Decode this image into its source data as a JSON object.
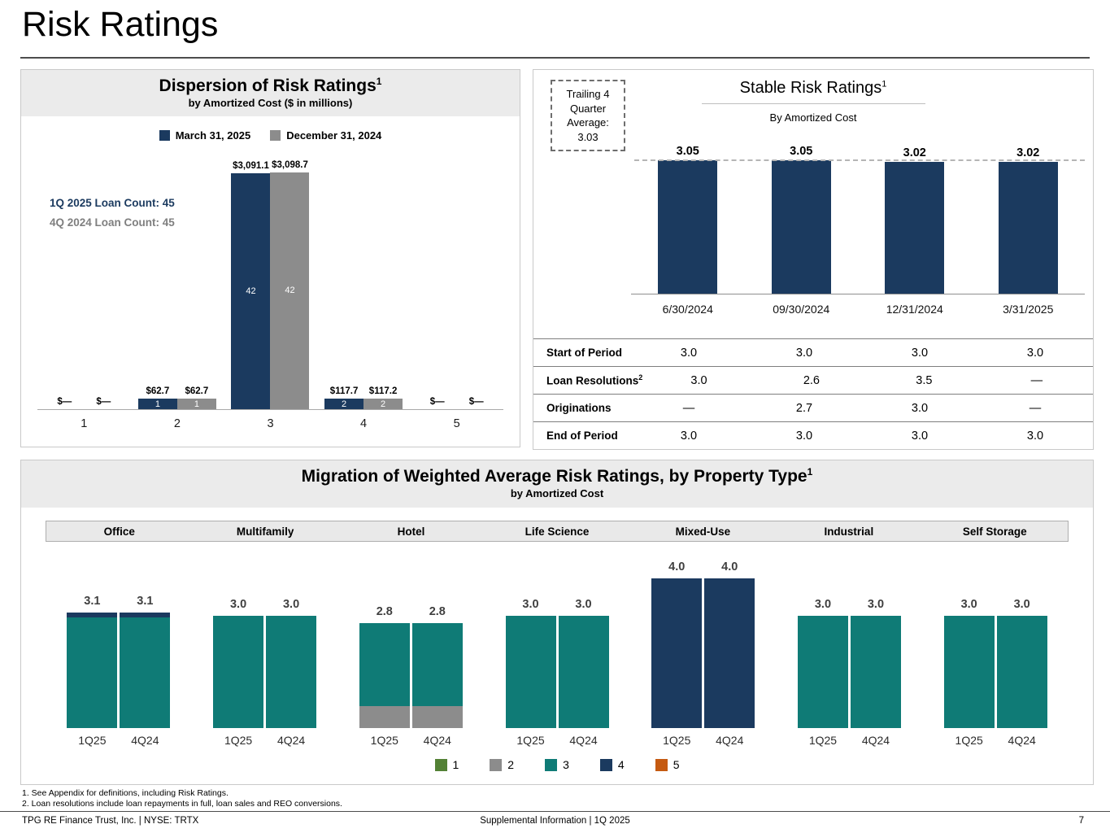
{
  "page": {
    "title": "Risk Ratings",
    "footnotes": [
      "1. See Appendix for definitions, including Risk Ratings.",
      "2. Loan resolutions include loan repayments in full, loan sales and REO conversions."
    ],
    "footer": {
      "left": "TPG RE Finance Trust, Inc. | NYSE: TRTX",
      "center": "Supplemental Information | 1Q 2025",
      "page_number": "7"
    }
  },
  "colors": {
    "navy": "#1b3a5f",
    "gray": "#8c8c8c",
    "teal": "#0f7b76",
    "green": "#538135",
    "orange": "#c55a11",
    "rating_colors": {
      "1": "#538135",
      "2": "#8c8c8c",
      "3": "#0f7b76",
      "4": "#1b3a5f",
      "5": "#c55a11"
    }
  },
  "chart_data": [
    {
      "id": "dispersion",
      "type": "bar",
      "title": "Dispersion of Risk Ratings",
      "footnote_ref": "1",
      "subtitle": "by Amortized Cost ($ in millions)",
      "xlabel": "",
      "ylabel": "",
      "ylim": [
        0,
        3300
      ],
      "legend_position": "top",
      "categories": [
        "1",
        "2",
        "3",
        "4",
        "5"
      ],
      "series": [
        {
          "name": "March 31, 2025",
          "color_key": "navy",
          "values": [
            0,
            62.7,
            3091.1,
            117.7,
            0
          ],
          "value_labels": [
            "$—",
            "$62.7",
            "$3,091.1",
            "$117.7",
            "$—"
          ],
          "loan_counts": [
            null,
            1,
            42,
            2,
            null
          ]
        },
        {
          "name": "December 31, 2024",
          "color_key": "gray",
          "values": [
            0,
            62.7,
            3098.7,
            117.2,
            0
          ],
          "value_labels": [
            "$—",
            "$62.7",
            "$3,098.7",
            "$117.2",
            "$—"
          ],
          "loan_counts": [
            null,
            1,
            42,
            2,
            null
          ]
        }
      ],
      "annotations": [
        "1Q 2025 Loan Count: 45",
        "4Q 2024 Loan Count: 45"
      ]
    },
    {
      "id": "stable",
      "type": "bar",
      "title": "Stable Risk Ratings",
      "footnote_ref": "1",
      "subtitle": "By Amortized Cost",
      "xlabel": "",
      "ylabel": "",
      "ylim": [
        0,
        3.35
      ],
      "color_key": "navy",
      "categories": [
        "6/30/2024",
        "09/30/2024",
        "12/31/2024",
        "3/31/2025"
      ],
      "values": [
        3.05,
        3.05,
        3.02,
        3.02
      ],
      "value_labels": [
        "3.05",
        "3.05",
        "3.02",
        "3.02"
      ],
      "average_line": {
        "value": 3.03
      },
      "callout": "Trailing 4 Quarter Average: 3.03",
      "table": {
        "rows": [
          {
            "label": "Start of Period",
            "sup": "",
            "values": [
              "3.0",
              "3.0",
              "3.0",
              "3.0"
            ]
          },
          {
            "label": "Loan Resolutions",
            "sup": "2",
            "values": [
              "3.0",
              "2.6",
              "3.5",
              "—"
            ]
          },
          {
            "label": "Originations",
            "sup": "",
            "values": [
              "—",
              "2.7",
              "3.0",
              "—"
            ]
          },
          {
            "label": "End of Period",
            "sup": "",
            "values": [
              "3.0",
              "3.0",
              "3.0",
              "3.0"
            ]
          }
        ]
      }
    },
    {
      "id": "migration",
      "type": "bar",
      "stacked": true,
      "title": "Migration of Weighted Average Risk Ratings, by Property Type",
      "footnote_ref": "1",
      "subtitle": "by Amortized Cost",
      "ylim": [
        0,
        4.3
      ],
      "legend_position": "bottom",
      "periods": [
        "1Q25",
        "4Q24"
      ],
      "groups": [
        {
          "name": "Office",
          "bars": [
            {
              "period": "1Q25",
              "total": 3.1,
              "label": "3.1",
              "segments": [
                {
                  "rating": "3",
                  "value": 2.95
                },
                {
                  "rating": "4",
                  "value": 0.15
                }
              ]
            },
            {
              "period": "4Q24",
              "total": 3.1,
              "label": "3.1",
              "segments": [
                {
                  "rating": "3",
                  "value": 2.95
                },
                {
                  "rating": "4",
                  "value": 0.15
                }
              ]
            }
          ]
        },
        {
          "name": "Multifamily",
          "bars": [
            {
              "period": "1Q25",
              "total": 3.0,
              "label": "3.0",
              "segments": [
                {
                  "rating": "3",
                  "value": 3.0
                }
              ]
            },
            {
              "period": "4Q24",
              "total": 3.0,
              "label": "3.0",
              "segments": [
                {
                  "rating": "3",
                  "value": 3.0
                }
              ]
            }
          ]
        },
        {
          "name": "Hotel",
          "bars": [
            {
              "period": "1Q25",
              "total": 2.8,
              "label": "2.8",
              "segments": [
                {
                  "rating": "2",
                  "value": 0.6
                },
                {
                  "rating": "3",
                  "value": 2.2
                }
              ]
            },
            {
              "period": "4Q24",
              "total": 2.8,
              "label": "2.8",
              "segments": [
                {
                  "rating": "2",
                  "value": 0.6
                },
                {
                  "rating": "3",
                  "value": 2.2
                }
              ]
            }
          ]
        },
        {
          "name": "Life Science",
          "bars": [
            {
              "period": "1Q25",
              "total": 3.0,
              "label": "3.0",
              "segments": [
                {
                  "rating": "3",
                  "value": 3.0
                }
              ]
            },
            {
              "period": "4Q24",
              "total": 3.0,
              "label": "3.0",
              "segments": [
                {
                  "rating": "3",
                  "value": 3.0
                }
              ]
            }
          ]
        },
        {
          "name": "Mixed-Use",
          "bars": [
            {
              "period": "1Q25",
              "total": 4.0,
              "label": "4.0",
              "segments": [
                {
                  "rating": "4",
                  "value": 4.0
                }
              ]
            },
            {
              "period": "4Q24",
              "total": 4.0,
              "label": "4.0",
              "segments": [
                {
                  "rating": "4",
                  "value": 4.0
                }
              ]
            }
          ]
        },
        {
          "name": "Industrial",
          "bars": [
            {
              "period": "1Q25",
              "total": 3.0,
              "label": "3.0",
              "segments": [
                {
                  "rating": "3",
                  "value": 3.0
                }
              ]
            },
            {
              "period": "4Q24",
              "total": 3.0,
              "label": "3.0",
              "segments": [
                {
                  "rating": "3",
                  "value": 3.0
                }
              ]
            }
          ]
        },
        {
          "name": "Self Storage",
          "bars": [
            {
              "period": "1Q25",
              "total": 3.0,
              "label": "3.0",
              "segments": [
                {
                  "rating": "3",
                  "value": 3.0
                }
              ]
            },
            {
              "period": "4Q24",
              "total": 3.0,
              "label": "3.0",
              "segments": [
                {
                  "rating": "3",
                  "value": 3.0
                }
              ]
            }
          ]
        }
      ],
      "legend": [
        {
          "label": "1",
          "rating": "1"
        },
        {
          "label": "2",
          "rating": "2"
        },
        {
          "label": "3",
          "rating": "3"
        },
        {
          "label": "4",
          "rating": "4"
        },
        {
          "label": "5",
          "rating": "5"
        }
      ]
    }
  ]
}
